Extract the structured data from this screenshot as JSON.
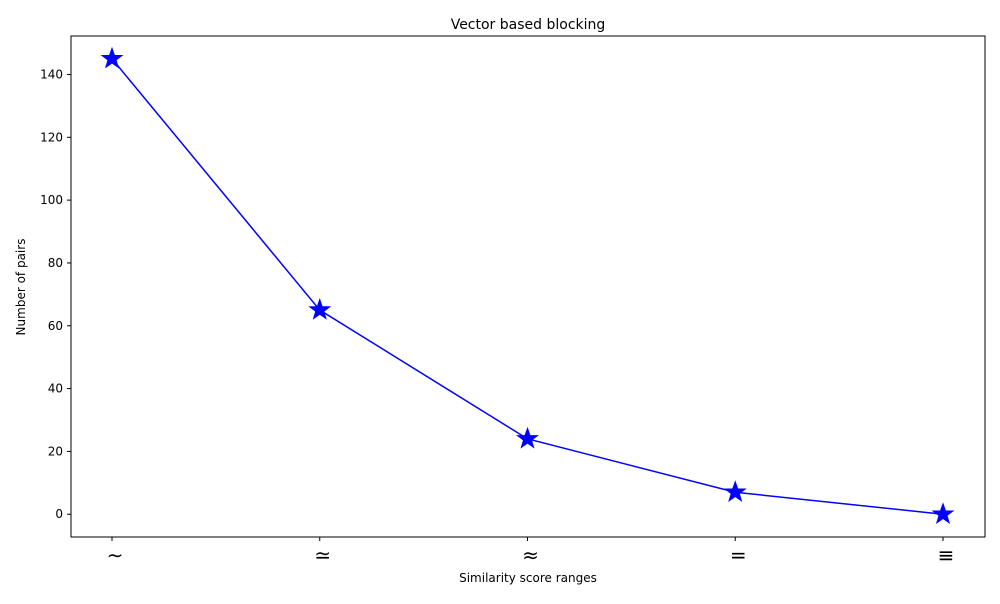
{
  "chart_data": {
    "type": "line",
    "title": "Vector based blocking",
    "xlabel": "Similarity score ranges",
    "ylabel": "Number of pairs",
    "categories": [
      "∼",
      "≃",
      "≈",
      "=",
      "≡"
    ],
    "series": [
      {
        "values": [
          145,
          65,
          24,
          7,
          0
        ],
        "color": "#0000ff",
        "marker": "star"
      }
    ],
    "ylim": [
      -7.25,
      152.25
    ],
    "yticks": [
      0,
      20,
      40,
      60,
      80,
      100,
      120,
      140
    ],
    "grid": false,
    "legend": "none"
  }
}
